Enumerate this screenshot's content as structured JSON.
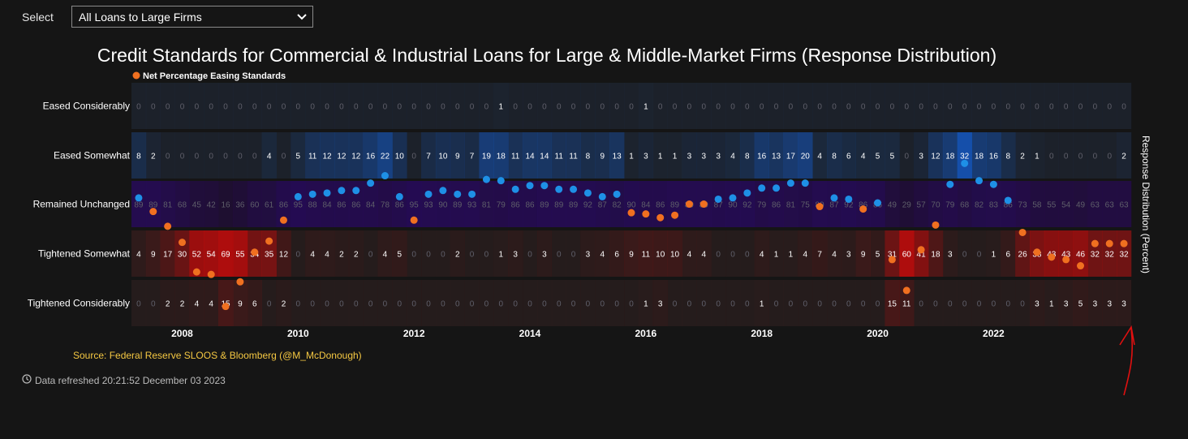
{
  "filter": {
    "label": "Select",
    "selected": "All Loans to Large Firms"
  },
  "chart_data": {
    "type": "heatmap",
    "title": "Credit Standards for Commercial & Industrial Loans for Large & Middle-Market Firms (Response Distribution)",
    "legend": "Net Percentage Easing Standards",
    "y_axis_label": "Response Distribution (Percent)",
    "rows": [
      "Eased Considerably",
      "Eased Somewhat",
      "Remained Unchanged",
      "Tightened Somewhat",
      "Tightened Considerably"
    ],
    "x_ticks": [
      "2008",
      "2010",
      "2012",
      "2014",
      "2016",
      "2018",
      "2020",
      "2022"
    ],
    "values": {
      "Eased Considerably": [
        0,
        0,
        0,
        0,
        0,
        0,
        0,
        0,
        0,
        0,
        0,
        0,
        0,
        0,
        0,
        0,
        0,
        0,
        0,
        0,
        0,
        0,
        0,
        0,
        0,
        1,
        0,
        0,
        0,
        0,
        0,
        0,
        0,
        0,
        0,
        1,
        0,
        0,
        0,
        0,
        0,
        0,
        0,
        0,
        0,
        0,
        0,
        0,
        0,
        0,
        0,
        0,
        0,
        0,
        0,
        0,
        0,
        0,
        0,
        0,
        0,
        0,
        0,
        0,
        0,
        0,
        0,
        0,
        0
      ],
      "Eased Somewhat": [
        8,
        2,
        0,
        0,
        0,
        0,
        0,
        0,
        0,
        4,
        0,
        5,
        11,
        12,
        12,
        12,
        16,
        22,
        10,
        0,
        7,
        10,
        9,
        7,
        19,
        18,
        11,
        14,
        14,
        11,
        11,
        8,
        9,
        13,
        1,
        3,
        1,
        1,
        3,
        3,
        3,
        4,
        8,
        16,
        13,
        17,
        20,
        4,
        8,
        6,
        4,
        5,
        5,
        0,
        3,
        12,
        18,
        32,
        18,
        16,
        8,
        2,
        1,
        0,
        0,
        0,
        0,
        0,
        2
      ],
      "Remained Unchanged": [
        89,
        89,
        81,
        68,
        45,
        42,
        16,
        36,
        60,
        61,
        86,
        95,
        88,
        84,
        86,
        86,
        84,
        78,
        86,
        95,
        93,
        90,
        89,
        93,
        81,
        79,
        86,
        86,
        89,
        89,
        89,
        92,
        87,
        82,
        90,
        84,
        86,
        89,
        89,
        89,
        87,
        90,
        92,
        79,
        86,
        81,
        75,
        89,
        87,
        92,
        86,
        86,
        49,
        29,
        57,
        70,
        79,
        68,
        82,
        83,
        86,
        73,
        58,
        55,
        54,
        49,
        63,
        63,
        63
      ],
      "Tightened Somewhat": [
        4,
        9,
        17,
        30,
        52,
        54,
        69,
        55,
        34,
        35,
        12,
        0,
        4,
        4,
        2,
        2,
        0,
        4,
        5,
        0,
        0,
        0,
        2,
        0,
        0,
        1,
        3,
        0,
        3,
        0,
        0,
        3,
        4,
        6,
        9,
        11,
        10,
        10,
        4,
        4,
        0,
        0,
        0,
        4,
        1,
        1,
        4,
        7,
        4,
        3,
        9,
        5,
        31,
        60,
        41,
        18,
        3,
        0,
        0,
        1,
        6,
        26,
        38,
        43,
        43,
        46,
        32,
        32,
        32
      ],
      "Tightened Considerably": [
        0,
        0,
        2,
        2,
        4,
        4,
        15,
        9,
        6,
        0,
        2,
        0,
        0,
        0,
        0,
        0,
        0,
        0,
        0,
        0,
        0,
        0,
        0,
        0,
        0,
        0,
        0,
        0,
        0,
        0,
        0,
        0,
        0,
        0,
        0,
        1,
        3,
        0,
        0,
        0,
        0,
        0,
        0,
        1,
        0,
        0,
        0,
        0,
        0,
        0,
        0,
        0,
        15,
        11,
        0,
        0,
        0,
        0,
        0,
        0,
        0,
        0,
        3,
        1,
        3,
        5,
        3,
        3,
        3
      ]
    },
    "net_easing": [
      4,
      -7,
      -19,
      -32,
      -56,
      -58,
      -84,
      -64,
      -40,
      -31,
      -14,
      5,
      7,
      8,
      10,
      10,
      16,
      22,
      5,
      -14,
      7,
      10,
      7,
      7,
      19,
      18,
      11,
      14,
      14,
      11,
      11,
      8,
      5,
      7,
      -8,
      -9,
      -12,
      -10,
      -1,
      -1,
      3,
      4,
      8,
      12,
      12,
      16,
      16,
      -3,
      4,
      3,
      -5,
      0,
      -46,
      -71,
      -38,
      -18,
      15,
      32,
      18,
      15,
      2,
      -24,
      -40,
      -44,
      -46,
      -51,
      -33,
      -33,
      -33
    ],
    "series_colors": {
      "net_easing_ease": "#1e90e6",
      "net_easing_tighten": "#f07020"
    }
  },
  "footer": {
    "source": "Source: Federal Reserve SLOOS & Bloomberg   (@M_McDonough)",
    "refreshed": "Data refreshed 20:21:52 December 03 2023"
  }
}
